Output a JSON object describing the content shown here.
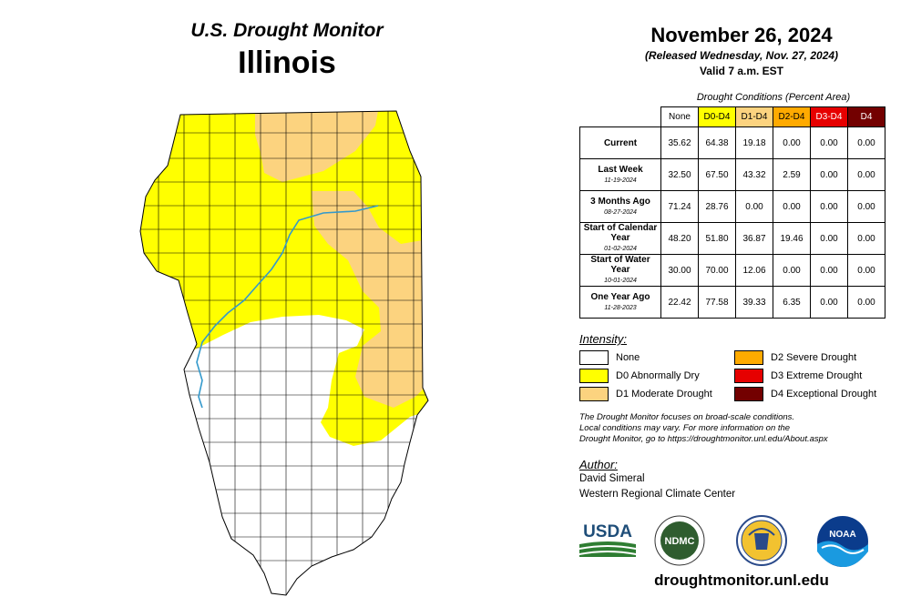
{
  "header": {
    "line1": "U.S. Drought Monitor",
    "line2": "Illinois"
  },
  "info": {
    "date": "November 26, 2024",
    "released": "(Released Wednesday, Nov. 27, 2024)",
    "valid": "Valid 7 a.m. EST"
  },
  "table": {
    "caption": "Drought Conditions (Percent Area)",
    "columns": [
      "None",
      "D0-D4",
      "D1-D4",
      "D2-D4",
      "D3-D4",
      "D4"
    ],
    "rows": [
      {
        "label": "Current",
        "date": "",
        "values": [
          "35.62",
          "64.38",
          "19.18",
          "0.00",
          "0.00",
          "0.00"
        ]
      },
      {
        "label": "Last Week",
        "date": "11-19-2024",
        "values": [
          "32.50",
          "67.50",
          "43.32",
          "2.59",
          "0.00",
          "0.00"
        ]
      },
      {
        "label": "3 Months Ago",
        "date": "08-27-2024",
        "values": [
          "71.24",
          "28.76",
          "0.00",
          "0.00",
          "0.00",
          "0.00"
        ]
      },
      {
        "label": "Start of Calendar Year",
        "date": "01-02-2024",
        "values": [
          "48.20",
          "51.80",
          "36.87",
          "19.46",
          "0.00",
          "0.00"
        ]
      },
      {
        "label": "Start of Water Year",
        "date": "10-01-2024",
        "values": [
          "30.00",
          "70.00",
          "12.06",
          "0.00",
          "0.00",
          "0.00"
        ]
      },
      {
        "label": "One Year Ago",
        "date": "11-28-2023",
        "values": [
          "22.42",
          "77.58",
          "39.33",
          "6.35",
          "0.00",
          "0.00"
        ]
      }
    ]
  },
  "legend": {
    "title": "Intensity:",
    "items": [
      {
        "label": "None",
        "color": "#ffffff"
      },
      {
        "label": "D0 Abnormally Dry",
        "color": "#ffff00"
      },
      {
        "label": "D1 Moderate Drought",
        "color": "#fcd37f"
      },
      {
        "label": "D2 Severe Drought",
        "color": "#ffaa00"
      },
      {
        "label": "D3 Extreme Drought",
        "color": "#e60000"
      },
      {
        "label": "D4 Exceptional Drought",
        "color": "#730000"
      }
    ]
  },
  "note": {
    "line1": "The Drought Monitor focuses on broad-scale conditions.",
    "line2": "Local conditions may vary. For more information on the",
    "line3": "Drought Monitor, go to https://droughtmonitor.unl.edu/About.aspx"
  },
  "author": {
    "title": "Author:",
    "name": "David Simeral",
    "org": "Western Regional Climate Center"
  },
  "logos": {
    "usda": "USDA",
    "ndmc": "NDMC",
    "noaa": "NOAA",
    "doc": "Department of Commerce seal"
  },
  "footer": {
    "url": "droughtmonitor.unl.edu"
  },
  "icons": {
    "usda": "usda-logo-icon",
    "ndmc": "ndmc-logo-icon",
    "doc": "doc-seal-icon",
    "noaa": "noaa-logo-icon"
  }
}
